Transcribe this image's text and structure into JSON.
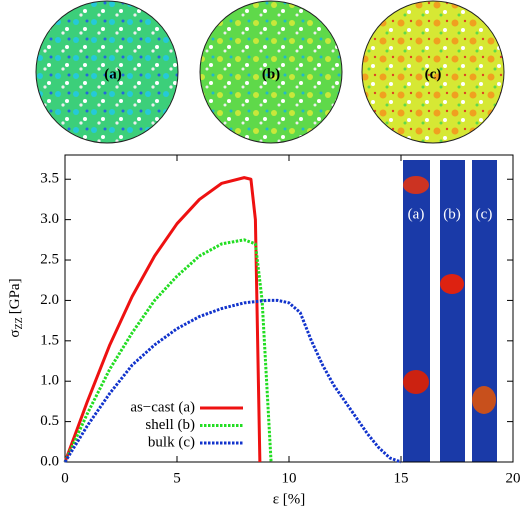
{
  "panel_labels": [
    "(a)",
    "(b)",
    "(c)"
  ],
  "inset_labels": [
    "(a)",
    "(b)",
    "(c)"
  ],
  "chart_data": {
    "type": "line",
    "xlabel": "ε [%]",
    "ylabel": {
      "symbol": "σ",
      "subscript": "ZZ",
      "unit": "[GPa]"
    },
    "xlim": [
      0,
      20
    ],
    "ylim": [
      0,
      3.8
    ],
    "xticks": [
      0,
      5,
      10,
      15,
      20
    ],
    "yticks": [
      {
        "value": 0,
        "label": "0.0"
      },
      {
        "value": 0.5,
        "label": "0.5"
      },
      {
        "value": 1,
        "label": "1.0"
      },
      {
        "value": 1.5,
        "label": "1.5"
      },
      {
        "value": 2,
        "label": "2.0"
      },
      {
        "value": 2.5,
        "label": "2.5"
      },
      {
        "value": 3,
        "label": "3.0"
      },
      {
        "value": 3.5,
        "label": "3.5"
      }
    ],
    "legend": "lower left",
    "series": [
      {
        "name": "as−cast (a)",
        "color": "#ee1111",
        "style": "solid",
        "x": [
          0,
          1,
          2,
          3,
          4,
          5,
          6,
          7,
          8,
          8.3,
          8.5,
          8.6,
          8.7
        ],
        "values": [
          0,
          0.75,
          1.45,
          2.05,
          2.55,
          2.95,
          3.25,
          3.45,
          3.52,
          3.5,
          3.0,
          1.5,
          0
        ]
      },
      {
        "name": "shell (b)",
        "color": "#22dd22",
        "style": "dotted",
        "x": [
          0,
          1,
          2,
          3,
          4,
          5,
          6,
          7,
          8,
          8.5,
          8.8,
          9.0,
          9.2
        ],
        "values": [
          0,
          0.6,
          1.15,
          1.6,
          2.0,
          2.3,
          2.55,
          2.7,
          2.75,
          2.7,
          2.0,
          1.0,
          0
        ]
      },
      {
        "name": "bulk (c)",
        "color": "#1133cc",
        "style": "dotted",
        "x": [
          0,
          1,
          2,
          3,
          4,
          5,
          6,
          7,
          8,
          9,
          9.5,
          10,
          10.5,
          11,
          11.5,
          12,
          12.5,
          13,
          13.5,
          14,
          14.5,
          15
        ],
        "values": [
          0,
          0.45,
          0.85,
          1.2,
          1.45,
          1.65,
          1.8,
          1.9,
          1.97,
          2.0,
          2.0,
          1.97,
          1.85,
          1.5,
          1.2,
          0.95,
          0.75,
          0.55,
          0.35,
          0.18,
          0.05,
          0
        ]
      }
    ]
  }
}
